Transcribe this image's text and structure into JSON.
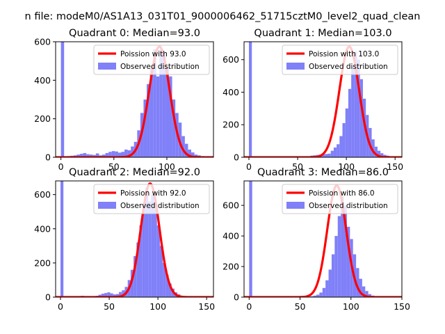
{
  "figure": {
    "suptitle": "n file: modeM0/AS1A13_031T01_9000006462_51715cztM0_level2_quad_clean"
  },
  "chart_data": [
    {
      "type": "bar",
      "title": "Quadrant 0: Median=93.0",
      "xlim": [
        -5,
        144
      ],
      "ylim": [
        0,
        600
      ],
      "xticks": [
        0,
        50,
        100
      ],
      "yticks": [
        0,
        200,
        400,
        600
      ],
      "legend_position": "upper-right",
      "line_label": "Poission with 93.0",
      "hist_label": "Observed distribution",
      "poisson_mean": 93.0,
      "poisson_peak": 575,
      "line_color": "#ff0000",
      "hist_color": "#8080f8",
      "spike_at_zero": 600,
      "bin_width": 3,
      "bins_x": [
        0,
        3,
        6,
        9,
        12,
        15,
        18,
        21,
        24,
        27,
        30,
        33,
        36,
        39,
        42,
        45,
        48,
        51,
        54,
        57,
        60,
        63,
        66,
        69,
        72,
        75,
        78,
        81,
        84,
        87,
        90,
        93,
        96,
        99,
        102,
        105,
        108,
        111,
        114,
        117,
        120,
        123,
        126,
        129,
        132,
        135,
        138
      ],
      "bins_y": [
        0,
        0,
        6,
        8,
        10,
        14,
        18,
        22,
        16,
        14,
        12,
        20,
        10,
        14,
        22,
        28,
        32,
        30,
        24,
        28,
        40,
        36,
        56,
        80,
        140,
        230,
        300,
        380,
        460,
        560,
        420,
        560,
        540,
        470,
        420,
        300,
        230,
        180,
        110,
        70,
        40,
        25,
        14,
        10,
        6,
        4,
        2
      ]
    },
    {
      "type": "bar",
      "title": "Quadrant 1: Median=103.0",
      "xlim": [
        -5,
        157
      ],
      "ylim": [
        0,
        710
      ],
      "xticks": [
        0,
        50,
        100,
        150
      ],
      "yticks": [
        0,
        200,
        400,
        600
      ],
      "legend_position": "upper-right",
      "line_label": "Poission with 103.0",
      "hist_label": "Observed distribution",
      "poisson_mean": 103.0,
      "poisson_peak": 680,
      "line_color": "#ff0000",
      "hist_color": "#8080f8",
      "spike_at_zero": 710,
      "bin_width": 3,
      "bins_x": [
        0,
        3,
        6,
        9,
        12,
        15,
        18,
        21,
        24,
        27,
        30,
        33,
        36,
        39,
        42,
        45,
        48,
        51,
        54,
        57,
        60,
        63,
        66,
        69,
        72,
        75,
        78,
        81,
        84,
        87,
        90,
        93,
        96,
        99,
        102,
        105,
        108,
        111,
        114,
        117,
        120,
        123,
        126,
        129,
        132,
        135,
        138,
        141,
        144,
        147,
        150
      ],
      "bins_y": [
        0,
        0,
        0,
        0,
        0,
        0,
        0,
        0,
        0,
        0,
        0,
        0,
        0,
        0,
        0,
        0,
        0,
        0,
        4,
        6,
        6,
        10,
        12,
        14,
        16,
        18,
        20,
        22,
        40,
        60,
        80,
        130,
        210,
        300,
        420,
        560,
        650,
        600,
        480,
        360,
        260,
        180,
        110,
        65,
        40,
        25,
        15,
        10,
        6,
        4,
        2
      ]
    },
    {
      "type": "bar",
      "title": "Quadrant 2: Median=92.0",
      "xlim": [
        -5,
        157
      ],
      "ylim": [
        0,
        680
      ],
      "xticks": [
        0,
        50,
        100,
        150
      ],
      "yticks": [
        0,
        200,
        400,
        600
      ],
      "legend_position": "upper-right",
      "line_label": "Poission with 92.0",
      "hist_label": "Observed distribution",
      "poisson_mean": 92.0,
      "poisson_peak": 665,
      "line_color": "#ff0000",
      "hist_color": "#8080f8",
      "spike_at_zero": 680,
      "bin_width": 3,
      "bins_x": [
        0,
        3,
        6,
        9,
        12,
        15,
        18,
        21,
        24,
        27,
        30,
        33,
        36,
        39,
        42,
        45,
        48,
        51,
        54,
        57,
        60,
        63,
        66,
        69,
        72,
        75,
        78,
        81,
        84,
        87,
        90,
        93,
        96,
        99,
        102,
        105,
        108,
        111,
        114,
        117,
        120,
        123,
        126,
        129,
        132,
        135,
        138,
        141,
        144,
        147,
        150
      ],
      "bins_y": [
        0,
        0,
        0,
        0,
        0,
        0,
        6,
        8,
        6,
        4,
        6,
        4,
        8,
        14,
        20,
        24,
        28,
        22,
        16,
        18,
        30,
        40,
        60,
        100,
        160,
        240,
        320,
        420,
        540,
        640,
        560,
        600,
        520,
        420,
        300,
        200,
        130,
        80,
        50,
        28,
        16,
        8,
        4,
        2,
        0,
        0,
        0,
        0,
        0,
        0,
        0
      ]
    },
    {
      "type": "bar",
      "title": "Quadrant 3: Median=86.0",
      "xlim": [
        -5,
        150
      ],
      "ylim": [
        0,
        760
      ],
      "xticks": [
        0,
        50,
        100,
        150
      ],
      "yticks": [
        0,
        200,
        400,
        600
      ],
      "legend_position": "upper-right",
      "line_label": "Poission with 86.0",
      "hist_label": "Observed distribution",
      "poisson_mean": 86.0,
      "poisson_peak": 730,
      "line_color": "#ff0000",
      "hist_color": "#8080f8",
      "spike_at_zero": 760,
      "bin_width": 3,
      "bins_x": [
        0,
        3,
        6,
        9,
        12,
        15,
        18,
        21,
        24,
        27,
        30,
        33,
        36,
        39,
        42,
        45,
        48,
        51,
        54,
        57,
        60,
        63,
        66,
        69,
        72,
        75,
        78,
        81,
        84,
        87,
        90,
        93,
        96,
        99,
        102,
        105,
        108,
        111,
        114,
        117,
        120,
        123,
        126,
        129,
        132,
        135,
        138,
        141
      ],
      "bins_y": [
        0,
        0,
        0,
        0,
        0,
        0,
        0,
        0,
        0,
        0,
        0,
        0,
        0,
        0,
        0,
        0,
        0,
        0,
        0,
        0,
        6,
        10,
        16,
        30,
        60,
        110,
        180,
        280,
        400,
        530,
        660,
        600,
        460,
        380,
        280,
        190,
        120,
        70,
        40,
        20,
        10,
        6,
        4,
        2,
        0,
        0,
        0,
        0
      ]
    }
  ]
}
